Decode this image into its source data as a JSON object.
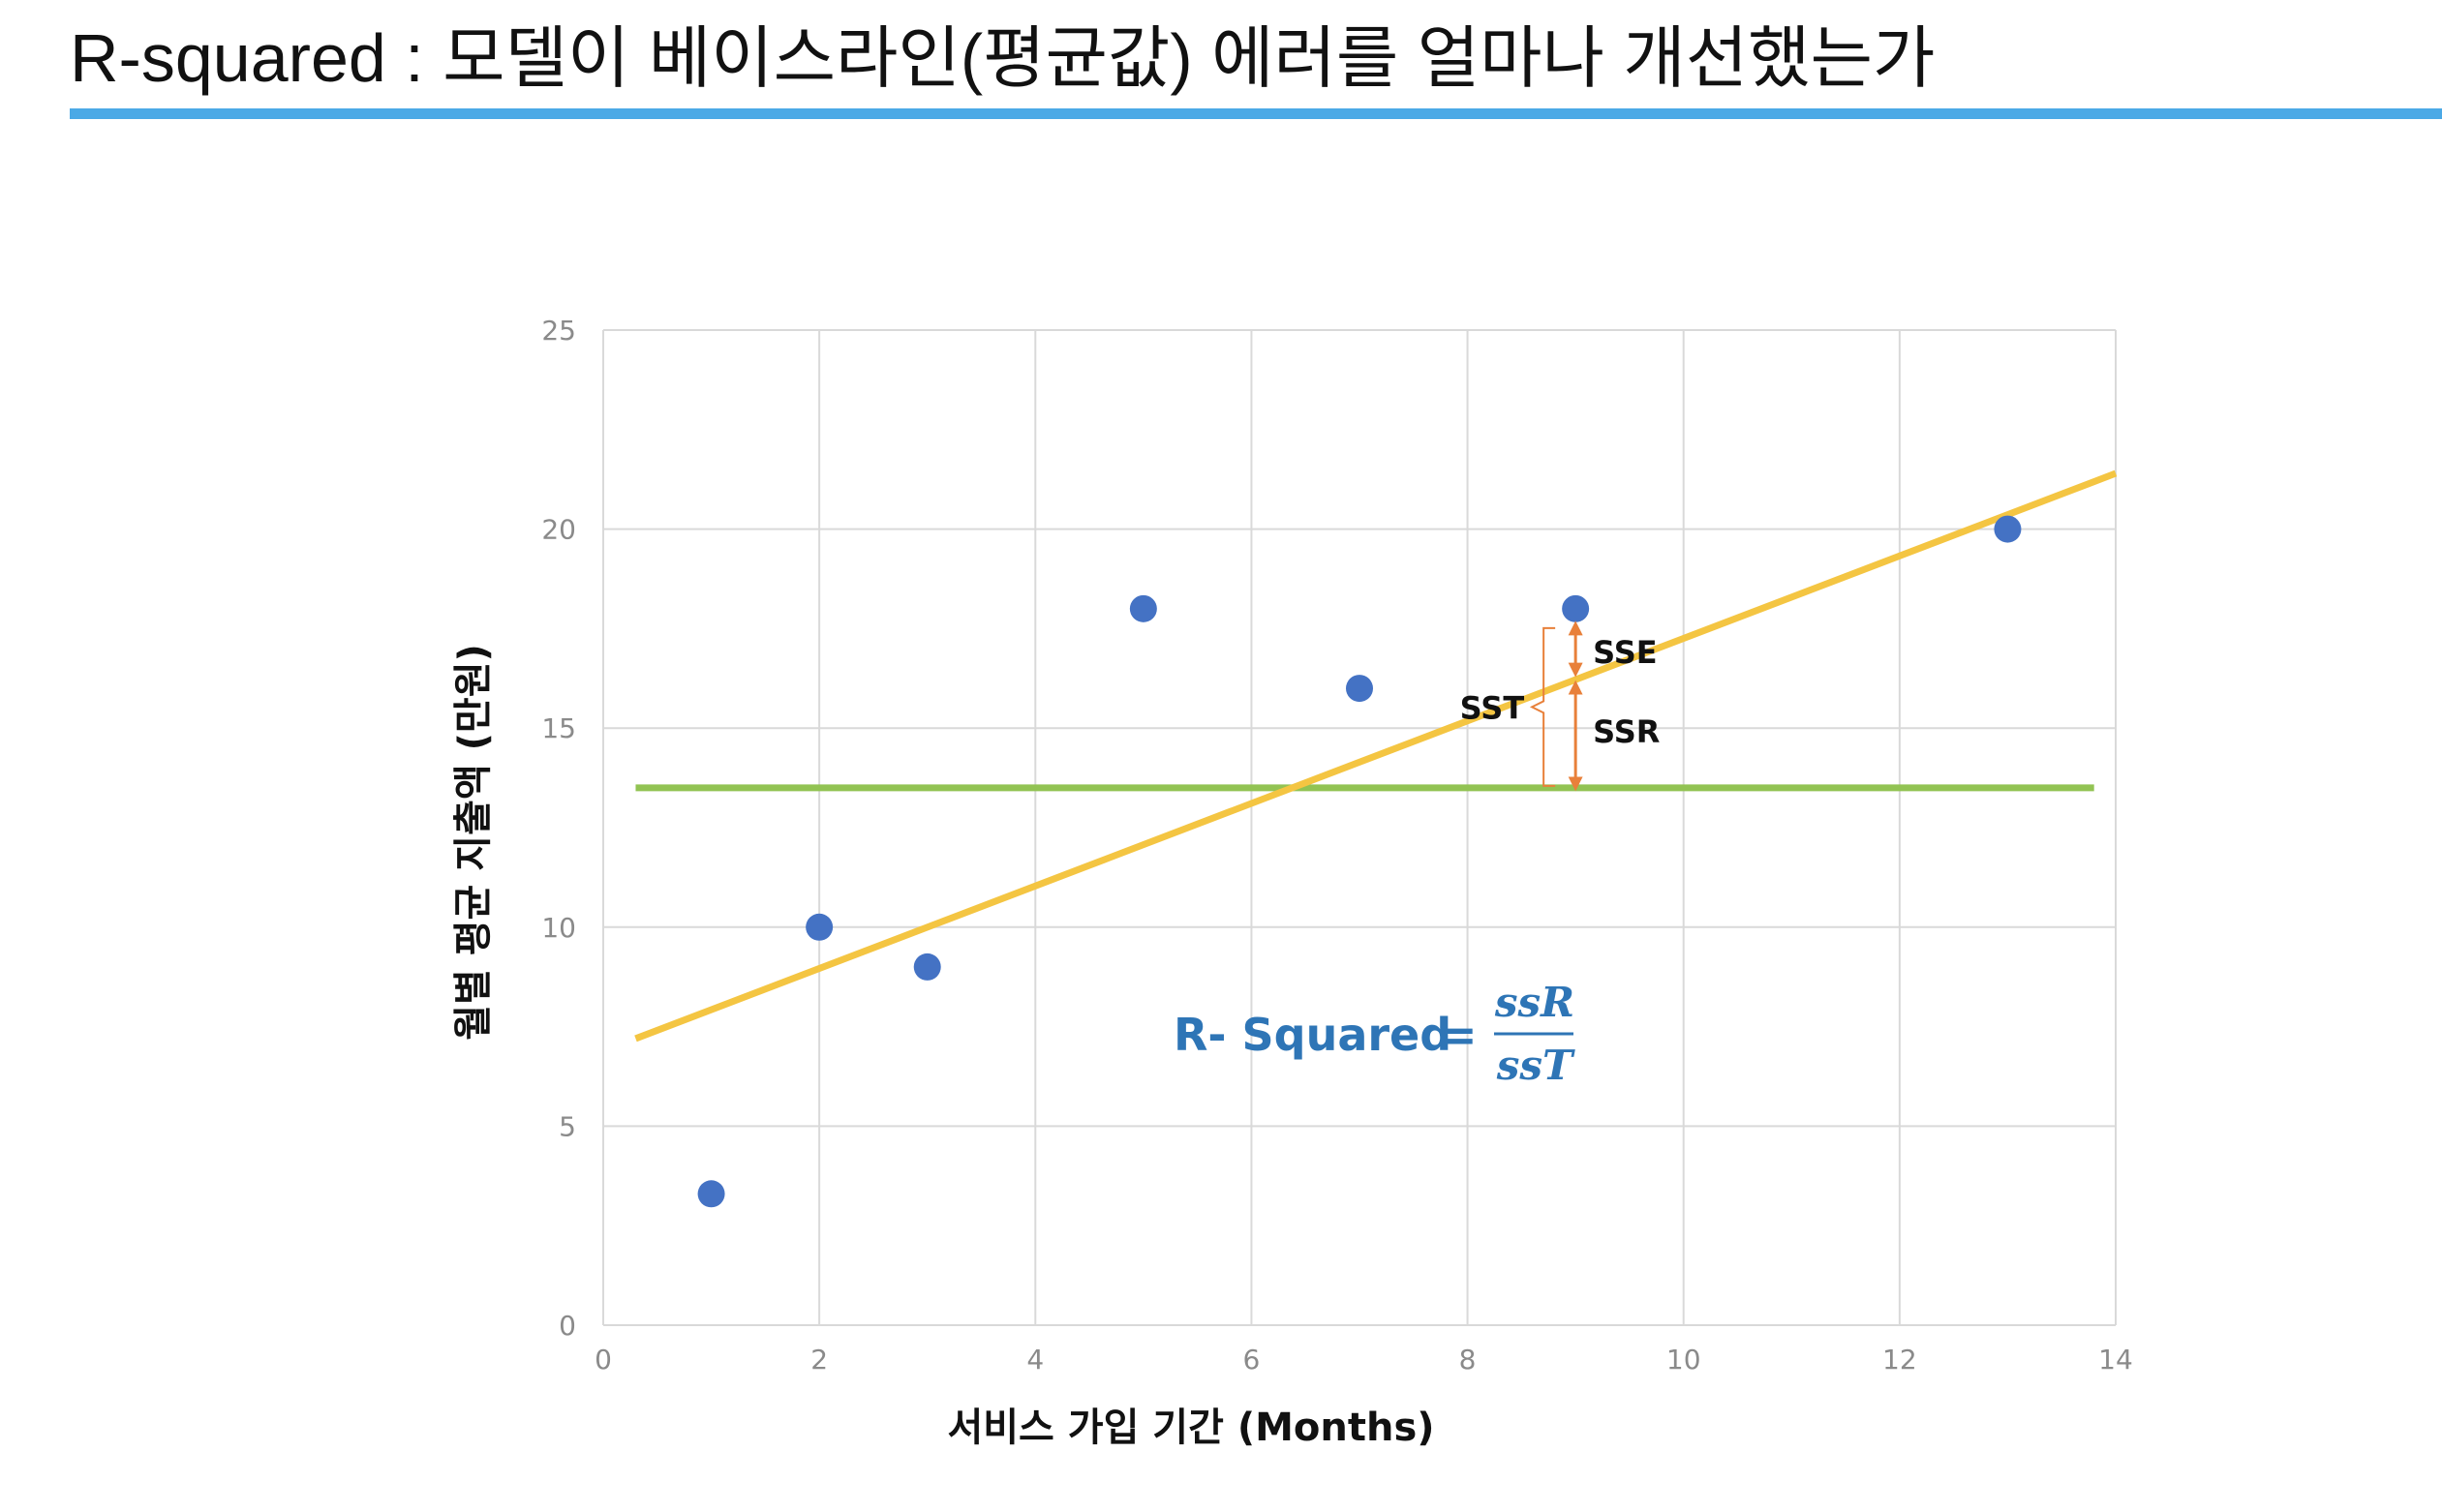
{
  "page": {
    "title": "R-squared : 모델이 베이스라인(평균값) 에러를 얼마나 개선했는가",
    "accent_color": "#4BA9E6"
  },
  "chart_data": {
    "type": "scatter",
    "xlabel": "서비스 가입 기간 (Months)",
    "ylabel": "월별 평균 지출액 (만원)",
    "xlim": [
      0,
      14
    ],
    "ylim": [
      0,
      25
    ],
    "x_ticks": [
      "0",
      "2",
      "4",
      "6",
      "8",
      "10",
      "12",
      "14"
    ],
    "y_ticks": [
      "0",
      "5",
      "10",
      "15",
      "20",
      "25"
    ],
    "grid": true,
    "points": [
      {
        "x": 1,
        "y": 3.3
      },
      {
        "x": 2,
        "y": 10
      },
      {
        "x": 3,
        "y": 9
      },
      {
        "x": 5,
        "y": 18
      },
      {
        "x": 7,
        "y": 16
      },
      {
        "x": 9,
        "y": 18
      },
      {
        "x": 13,
        "y": 20
      }
    ],
    "point_color": "#4472C4",
    "regression_line": {
      "x": [
        0.3,
        14
      ],
      "y": [
        7.2,
        21.4
      ],
      "color": "#F4C542"
    },
    "baseline_mean": {
      "x": [
        0.3,
        13.8
      ],
      "y": 13.5,
      "color": "#92C353"
    },
    "error_arrow_color": "#E8803A",
    "annotations": {
      "sse": "SSE",
      "ssr": "SSR",
      "sst": "SST",
      "formula_lhs": "R- Squared",
      "formula_eq": "=",
      "formula_num": "ssR",
      "formula_den": "ssT"
    }
  }
}
